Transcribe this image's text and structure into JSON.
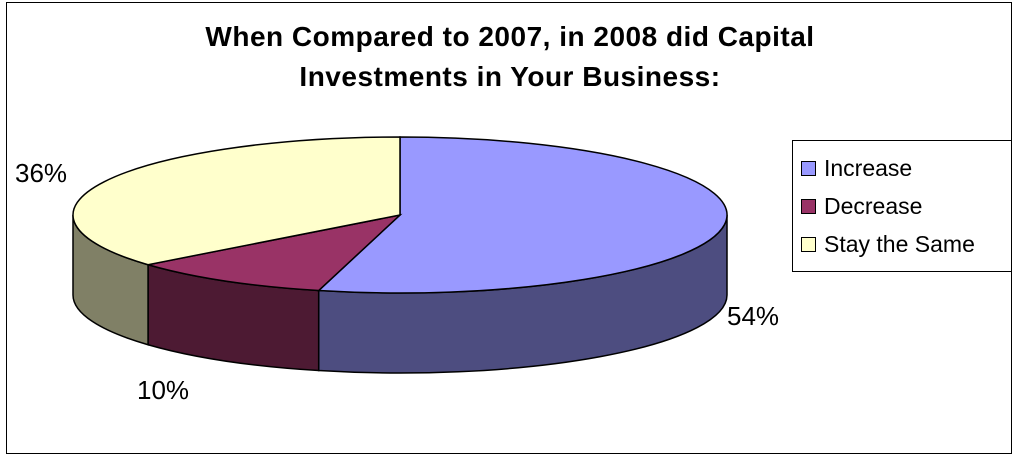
{
  "chart_data": {
    "type": "pie",
    "style": "3d",
    "title_lines": [
      "When Compared to 2007, in 2008 did Capital",
      "Investments in Your Business:"
    ],
    "slices": [
      {
        "name": "Increase",
        "value": 54,
        "label": "54%",
        "color": "#9999ff",
        "side_color": "#4d4d80"
      },
      {
        "name": "Decrease",
        "value": 10,
        "label": "10%",
        "color": "#993366",
        "side_color": "#4d1a33"
      },
      {
        "name": "Stay the Same",
        "value": 36,
        "label": "36%",
        "color": "#ffffcc",
        "side_color": "#808066"
      }
    ],
    "legend_position": "right"
  }
}
